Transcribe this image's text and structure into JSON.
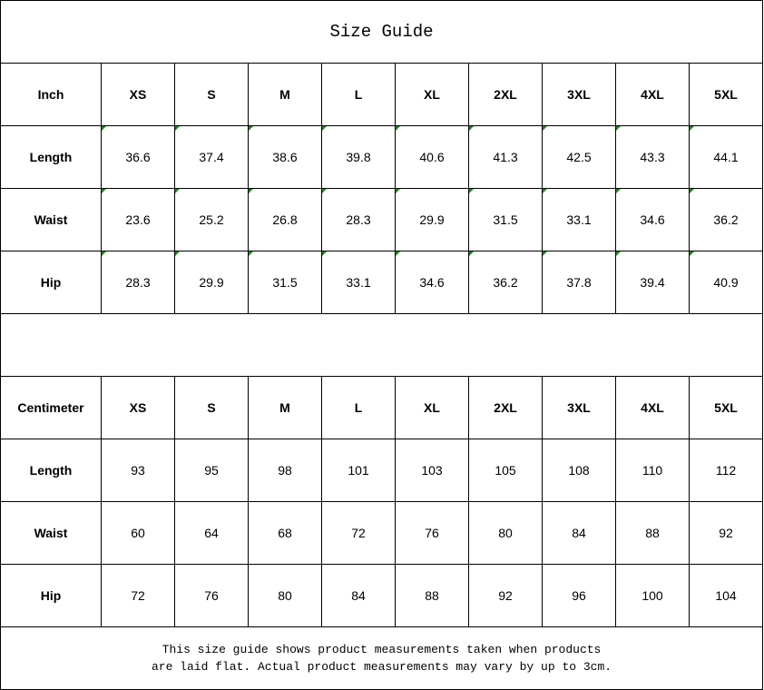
{
  "title": "Size Guide",
  "sizes": [
    "XS",
    "S",
    "M",
    "L",
    "XL",
    "2XL",
    "3XL",
    "4XL",
    "5XL"
  ],
  "inch": {
    "unit_label": "Inch",
    "rows": [
      {
        "label": "Length",
        "values": [
          "36.6",
          "37.4",
          "38.6",
          "39.8",
          "40.6",
          "41.3",
          "42.5",
          "43.3",
          "44.1"
        ]
      },
      {
        "label": "Waist",
        "values": [
          "23.6",
          "25.2",
          "26.8",
          "28.3",
          "29.9",
          "31.5",
          "33.1",
          "34.6",
          "36.2"
        ]
      },
      {
        "label": "Hip",
        "values": [
          "28.3",
          "29.9",
          "31.5",
          "33.1",
          "34.6",
          "36.2",
          "37.8",
          "39.4",
          "40.9"
        ]
      }
    ]
  },
  "cm": {
    "unit_label": "Centimeter",
    "rows": [
      {
        "label": "Length",
        "values": [
          "93",
          "95",
          "98",
          "101",
          "103",
          "105",
          "108",
          "110",
          "112"
        ]
      },
      {
        "label": "Waist",
        "values": [
          "60",
          "64",
          "68",
          "72",
          "76",
          "80",
          "84",
          "88",
          "92"
        ]
      },
      {
        "label": "Hip",
        "values": [
          "72",
          "76",
          "80",
          "84",
          "88",
          "92",
          "96",
          "100",
          "104"
        ]
      }
    ]
  },
  "note_line1": "This size guide shows product measurements taken when products",
  "note_line2": "are laid flat. Actual product measurements may vary by up to 3cm.",
  "colors": {
    "error_flag": "#1a8a1a",
    "border": "#000000"
  }
}
